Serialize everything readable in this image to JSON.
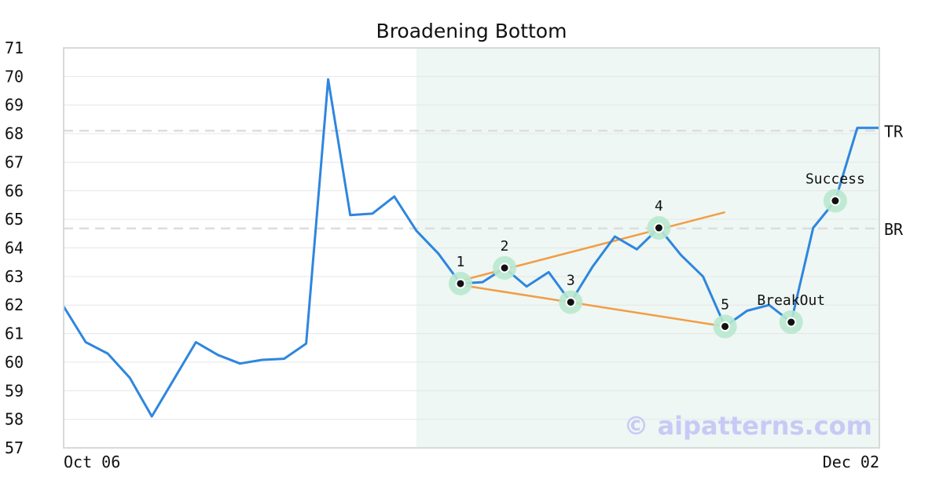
{
  "chart_data": {
    "type": "line",
    "title": "Broadening Bottom",
    "xlabel": "",
    "ylabel": "",
    "ylim": [
      57,
      71
    ],
    "yticks": [
      57,
      58,
      59,
      60,
      61,
      62,
      63,
      64,
      65,
      66,
      67,
      68,
      69,
      70,
      71
    ],
    "x_tick_labels": [
      "Oct 06",
      "Dec 02"
    ],
    "grid": true,
    "colors": {
      "price": "#2e86de",
      "trendline": "#f39c45",
      "highlight": "#eef7f3",
      "marker_halo": "#b8e8d0",
      "ref_line": "#dddddd"
    },
    "series": [
      {
        "values": [
          61.95,
          60.7,
          60.3,
          59.45,
          58.1,
          59.4,
          60.7,
          60.25,
          59.95,
          60.08,
          60.12,
          60.65,
          69.9,
          65.15,
          65.2,
          65.8,
          64.6,
          63.8,
          62.75,
          62.8,
          63.3,
          62.65,
          63.15,
          62.1,
          63.35,
          64.4,
          63.95,
          64.7,
          63.75,
          63.0,
          61.25,
          61.8,
          62.0,
          61.4,
          64.7,
          65.65,
          68.2,
          68.2
        ]
      }
    ],
    "highlight_range": [
      16,
      37
    ],
    "reference_lines": [
      {
        "label": "TR",
        "value": 68.1
      },
      {
        "label": "BR",
        "value": 64.68
      }
    ],
    "trendlines": [
      {
        "from": [
          18,
          62.85
        ],
        "to": [
          30,
          65.25
        ]
      },
      {
        "from": [
          18,
          62.7
        ],
        "to": [
          30,
          61.25
        ]
      }
    ],
    "points": [
      {
        "label": "1",
        "index": 18,
        "value": 62.75
      },
      {
        "label": "2",
        "index": 20,
        "value": 63.3
      },
      {
        "label": "3",
        "index": 23,
        "value": 62.1
      },
      {
        "label": "4",
        "index": 27,
        "value": 64.7
      },
      {
        "label": "5",
        "index": 30,
        "value": 61.25
      },
      {
        "label": "BreakOut",
        "index": 33,
        "value": 61.4
      },
      {
        "label": "Success",
        "index": 35,
        "value": 65.65
      }
    ],
    "watermark": "© aipatterns.com"
  }
}
